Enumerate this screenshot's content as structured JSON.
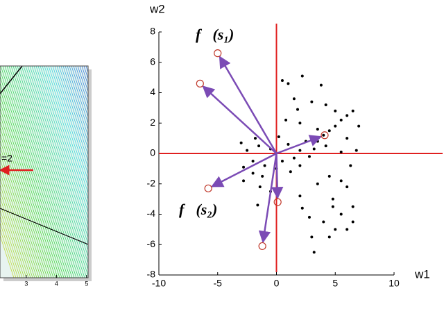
{
  "chart_data": [
    {
      "type": "contour",
      "annotation": "=2",
      "xlim": [
        2.13,
        5.05
      ],
      "xticks": [
        3,
        4,
        5
      ]
    },
    {
      "type": "scatter",
      "xlabel": "w1",
      "ylabel": "w2",
      "xlim": [
        -10,
        10
      ],
      "ylim": [
        -8,
        8
      ],
      "xticks": [
        -10,
        -5,
        0,
        5,
        10
      ],
      "yticks": [
        -8,
        -6,
        -4,
        -2,
        0,
        2,
        4,
        6,
        8
      ],
      "annotations": [
        "f⃗(s₁)",
        "f⃗(s₂)"
      ],
      "series": [
        {
          "color": "#000000",
          "marker": "dot",
          "x": [
            -2.5,
            -2,
            -1.5,
            -1,
            -0.5,
            0.5,
            1,
            1.5,
            2,
            2.5,
            -2.8,
            -2,
            -1.2,
            0,
            1.2,
            2,
            -3,
            -1.8,
            0.2,
            2.8,
            3.2,
            3.5,
            4,
            4.5,
            5,
            5.5,
            6,
            6.5,
            5,
            3.5,
            4.2,
            6,
            6.8,
            5.5,
            7,
            0.5,
            1,
            2.2,
            3.8,
            3,
            4.2,
            1.5,
            0.8,
            2,
            1.8,
            -2.8,
            -1.4,
            -1.6,
            -0.5,
            2,
            2.2,
            3.5,
            4.5,
            5.5,
            6,
            6.3,
            4.8,
            5.5,
            4,
            5,
            6,
            6.5,
            4.5,
            3,
            3.2,
            4.8,
            2.8,
            6.5
          ],
          "y": [
            0.2,
            -0.5,
            0.5,
            -0.8,
            0.3,
            -0.5,
            0.6,
            -0.3,
            0.2,
            0.8,
            -0.9,
            -1.3,
            -1.5,
            -1,
            -1.2,
            -0.8,
            0.7,
            1,
            1.1,
            -0.2,
            0.3,
            0.8,
            1.2,
            1.5,
            1.8,
            2.2,
            2.5,
            2.8,
            2.8,
            1.6,
            0.5,
            1,
            0.2,
            0.1,
            1.8,
            4.8,
            4.6,
            5.1,
            4.5,
            3.4,
            3.2,
            3.6,
            2.2,
            2,
            2.9,
            -1.8,
            -2.2,
            -3.4,
            -2.5,
            -2.8,
            -3.6,
            -2,
            -1.5,
            -1.8,
            -2.2,
            -0.8,
            -3.5,
            -4,
            -4.5,
            -5,
            -5,
            -4.5,
            -5.5,
            -5.5,
            -6.5,
            -3,
            -4.2,
            -3.5
          ]
        },
        {
          "color": "#c0392b",
          "marker": "open-circle",
          "arrow_color": "#7b4bb5",
          "x": [
            -5,
            -6.5,
            -5.8,
            -1.2,
            0.1,
            4.1
          ],
          "y": [
            6.6,
            4.6,
            -2.3,
            -6.1,
            -3.2,
            1.2
          ]
        }
      ]
    }
  ]
}
